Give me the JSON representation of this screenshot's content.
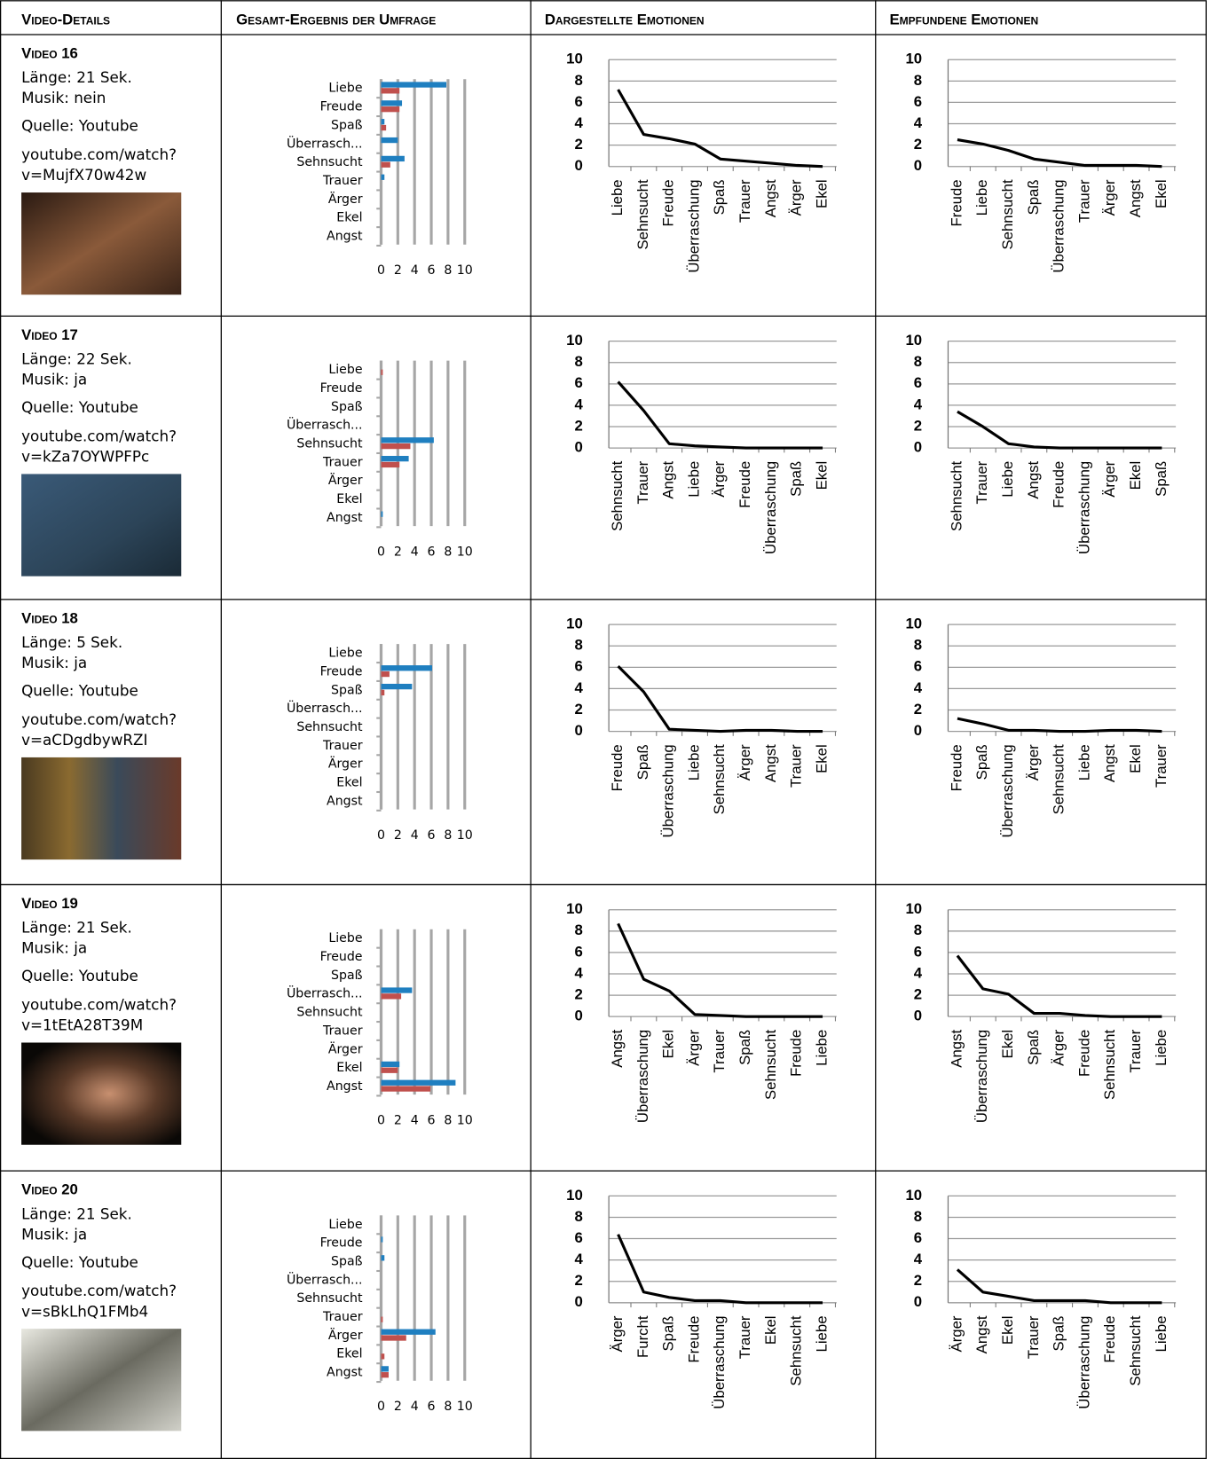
{
  "header": [
    "Video-Details",
    "Gesamt-Ergebnis der Umfrage",
    "Dargestellte Emotionen",
    "Empfundene Emotionen"
  ],
  "rows": [
    {
      "title": "Video 16",
      "length": "Länge: 21 Sek.",
      "music": "Musik: nein",
      "source": "Quelle: Youtube",
      "url": [
        "youtube.com/watch?",
        "v=MujfX70w42w"
      ]
    },
    {
      "title": "Video 17",
      "length": "Länge: 22 Sek.",
      "music": "Musik: ja",
      "source": "Quelle: Youtube",
      "url": [
        "youtube.com/watch?",
        "v=kZa7OYWPFPc"
      ]
    },
    {
      "title": "Video 18",
      "length": "Länge: 5 Sek.",
      "music": "Musik: ja",
      "source": "Quelle: Youtube",
      "url": [
        "youtube.com/watch?",
        "v=aCDgdbywRZI"
      ]
    },
    {
      "title": "Video 19",
      "length": "Länge: 21 Sek.",
      "music": "Musik: ja",
      "source": "Quelle: Youtube",
      "url": [
        "youtube.com/watch?",
        "v=1tEtA28T39M"
      ]
    },
    {
      "title": "Video 20",
      "length": "Länge: 21 Sek.",
      "music": "Musik: ja",
      "source": "Quelle: Youtube",
      "url": [
        "youtube.com/watch?",
        "v=sBkLhQ1FMb4"
      ]
    }
  ],
  "chart_data": [
    {
      "type": "bar",
      "categories": [
        "Liebe",
        "Freude",
        "Spaß",
        "Überrasch...",
        "Sehnsucht",
        "Trauer",
        "Ärger",
        "Ekel",
        "Angst"
      ],
      "series": [
        {
          "color": "#1f7fc0",
          "values": [
            7.8,
            2.5,
            0.4,
            2,
            2.8,
            0.4,
            0,
            0,
            0
          ]
        },
        {
          "color": "#c0504d",
          "values": [
            2.2,
            2.2,
            0.6,
            0,
            1.1,
            0,
            0,
            0,
            0
          ]
        }
      ],
      "xlim": [
        0,
        10
      ],
      "xticks": [
        0,
        2,
        4,
        6,
        8,
        10
      ],
      "grid": true
    },
    {
      "type": "line",
      "categories": [
        "Liebe",
        "Sehnsucht",
        "Freude",
        "Überraschung",
        "Spaß",
        "Trauer",
        "Angst",
        "Ärger",
        "Ekel"
      ],
      "values": [
        7.2,
        3,
        2.6,
        2.1,
        0.7,
        0.5,
        0.3,
        0.1,
        0
      ],
      "color": "#000000",
      "ylim": [
        0,
        10
      ],
      "yticks": [
        0,
        2,
        4,
        6,
        8,
        10
      ],
      "grid": true
    },
    {
      "type": "line",
      "categories": [
        "Freude",
        "Liebe",
        "Sehnsucht",
        "Spaß",
        "Überraschung",
        "Trauer",
        "Ärger",
        "Angst",
        "Ekel"
      ],
      "values": [
        2.5,
        2.1,
        1.5,
        0.7,
        0.4,
        0.1,
        0.1,
        0.1,
        0
      ],
      "color": "#000000",
      "ylim": [
        0,
        10
      ],
      "yticks": [
        0,
        2,
        4,
        6,
        8,
        10
      ],
      "grid": true
    },
    {
      "type": "bar",
      "categories": [
        "Liebe",
        "Freude",
        "Spaß",
        "Überrasch...",
        "Sehnsucht",
        "Trauer",
        "Ärger",
        "Ekel",
        "Angst"
      ],
      "series": [
        {
          "color": "#1f7fc0",
          "values": [
            0,
            0,
            0,
            0,
            6.3,
            3.3,
            0,
            0,
            0.2
          ]
        },
        {
          "color": "#c0504d",
          "values": [
            0.2,
            0,
            0,
            0,
            3.5,
            2.2,
            0,
            0,
            0
          ]
        }
      ],
      "xlim": [
        0,
        10
      ],
      "xticks": [
        0,
        2,
        4,
        6,
        8,
        10
      ],
      "grid": true
    },
    {
      "type": "line",
      "categories": [
        "Sehnsucht",
        "Trauer",
        "Angst",
        "Liebe",
        "Ärger",
        "Freude",
        "Überraschung",
        "Spaß",
        "Ekel"
      ],
      "values": [
        6.2,
        3.5,
        0.4,
        0.2,
        0.1,
        0,
        0,
        0,
        0
      ],
      "color": "#000000",
      "ylim": [
        0,
        10
      ],
      "yticks": [
        0,
        2,
        4,
        6,
        8,
        10
      ],
      "grid": true
    },
    {
      "type": "line",
      "categories": [
        "Sehnsucht",
        "Trauer",
        "Liebe",
        "Angst",
        "Freude",
        "Überraschung",
        "Ärger",
        "Ekel",
        "Spaß"
      ],
      "values": [
        3.4,
        2,
        0.4,
        0.1,
        0,
        0,
        0,
        0,
        0
      ],
      "color": "#000000",
      "ylim": [
        0,
        10
      ],
      "yticks": [
        0,
        2,
        4,
        6,
        8,
        10
      ],
      "grid": true
    },
    {
      "type": "bar",
      "categories": [
        "Liebe",
        "Freude",
        "Spaß",
        "Überrasch...",
        "Sehnsucht",
        "Trauer",
        "Ärger",
        "Ekel",
        "Angst"
      ],
      "series": [
        {
          "color": "#1f7fc0",
          "values": [
            0,
            6.1,
            3.7,
            0,
            0,
            0,
            0,
            0,
            0
          ]
        },
        {
          "color": "#c0504d",
          "values": [
            0,
            1,
            0.4,
            0,
            0,
            0,
            0,
            0,
            0
          ]
        }
      ],
      "xlim": [
        0,
        10
      ],
      "xticks": [
        0,
        2,
        4,
        6,
        8,
        10
      ],
      "grid": true
    },
    {
      "type": "line",
      "categories": [
        "Freude",
        "Spaß",
        "Überraschung",
        "Liebe",
        "Sehnsucht",
        "Ärger",
        "Angst",
        "Trauer",
        "Ekel"
      ],
      "values": [
        6.1,
        3.7,
        0.2,
        0.1,
        0,
        0.1,
        0.1,
        0,
        0
      ],
      "color": "#000000",
      "ylim": [
        0,
        10
      ],
      "yticks": [
        0,
        2,
        4,
        6,
        8,
        10
      ],
      "grid": true
    },
    {
      "type": "line",
      "categories": [
        "Freude",
        "Spaß",
        "Überraschung",
        "Ärger",
        "Sehnsucht",
        "Liebe",
        "Angst",
        "Ekel",
        "Trauer"
      ],
      "values": [
        1.2,
        0.7,
        0.1,
        0.1,
        0,
        0,
        0.1,
        0.1,
        0
      ],
      "color": "#000000",
      "ylim": [
        0,
        10
      ],
      "yticks": [
        0,
        2,
        4,
        6,
        8,
        10
      ],
      "grid": true
    },
    {
      "type": "bar",
      "categories": [
        "Liebe",
        "Freude",
        "Spaß",
        "Überrasch...",
        "Sehnsucht",
        "Trauer",
        "Ärger",
        "Ekel",
        "Angst"
      ],
      "series": [
        {
          "color": "#1f7fc0",
          "values": [
            0,
            0,
            0,
            3.7,
            0,
            0,
            0,
            2.2,
            8.9
          ]
        },
        {
          "color": "#c0504d",
          "values": [
            0,
            0,
            0,
            2.4,
            0,
            0,
            0,
            2,
            5.9
          ]
        }
      ],
      "xlim": [
        0,
        10
      ],
      "xticks": [
        0,
        2,
        4,
        6,
        8,
        10
      ],
      "grid": true
    },
    {
      "type": "line",
      "categories": [
        "Angst",
        "Überraschung",
        "Ekel",
        "Ärger",
        "Trauer",
        "Spaß",
        "Sehnsucht",
        "Freude",
        "Liebe"
      ],
      "values": [
        8.7,
        3.5,
        2.4,
        0.2,
        0.1,
        0,
        0,
        0,
        0
      ],
      "color": "#000000",
      "ylim": [
        0,
        10
      ],
      "yticks": [
        0,
        2,
        4,
        6,
        8,
        10
      ],
      "grid": true
    },
    {
      "type": "line",
      "categories": [
        "Angst",
        "Überraschung",
        "Ekel",
        "Spaß",
        "Ärger",
        "Freude",
        "Sehnsucht",
        "Trauer",
        "Liebe"
      ],
      "values": [
        5.7,
        2.6,
        2.1,
        0.3,
        0.3,
        0.1,
        0,
        0,
        0
      ],
      "color": "#000000",
      "ylim": [
        0,
        10
      ],
      "yticks": [
        0,
        2,
        4,
        6,
        8,
        10
      ],
      "grid": true
    },
    {
      "type": "bar",
      "categories": [
        "Liebe",
        "Freude",
        "Spaß",
        "Überrasch...",
        "Sehnsucht",
        "Trauer",
        "Ärger",
        "Ekel",
        "Angst"
      ],
      "series": [
        {
          "color": "#1f7fc0",
          "values": [
            0,
            0.2,
            0.4,
            0,
            0,
            0,
            6.5,
            0,
            0.9
          ]
        },
        {
          "color": "#c0504d",
          "values": [
            0,
            0,
            0,
            0,
            0,
            0.2,
            3,
            0.4,
            0.9
          ]
        }
      ],
      "xlim": [
        0,
        10
      ],
      "xticks": [
        0,
        2,
        4,
        6,
        8,
        10
      ],
      "grid": true
    },
    {
      "type": "line",
      "categories": [
        "Ärger",
        "Furcht",
        "Spaß",
        "Freude",
        "Überraschung",
        "Trauer",
        "Ekel",
        "Sehnsucht",
        "Liebe"
      ],
      "values": [
        6.4,
        1,
        0.5,
        0.2,
        0.2,
        0,
        0,
        0,
        0
      ],
      "color": "#000000",
      "ylim": [
        0,
        10
      ],
      "yticks": [
        0,
        2,
        4,
        6,
        8,
        10
      ],
      "grid": true
    },
    {
      "type": "line",
      "categories": [
        "Ärger",
        "Angst",
        "Ekel",
        "Trauer",
        "Spaß",
        "Überraschung",
        "Freude",
        "Sehnsucht",
        "Liebe"
      ],
      "values": [
        3.1,
        1,
        0.6,
        0.2,
        0.2,
        0.2,
        0,
        0,
        0
      ],
      "color": "#000000",
      "ylim": [
        0,
        10
      ],
      "yticks": [
        0,
        2,
        4,
        6,
        8,
        10
      ],
      "grid": true
    }
  ]
}
